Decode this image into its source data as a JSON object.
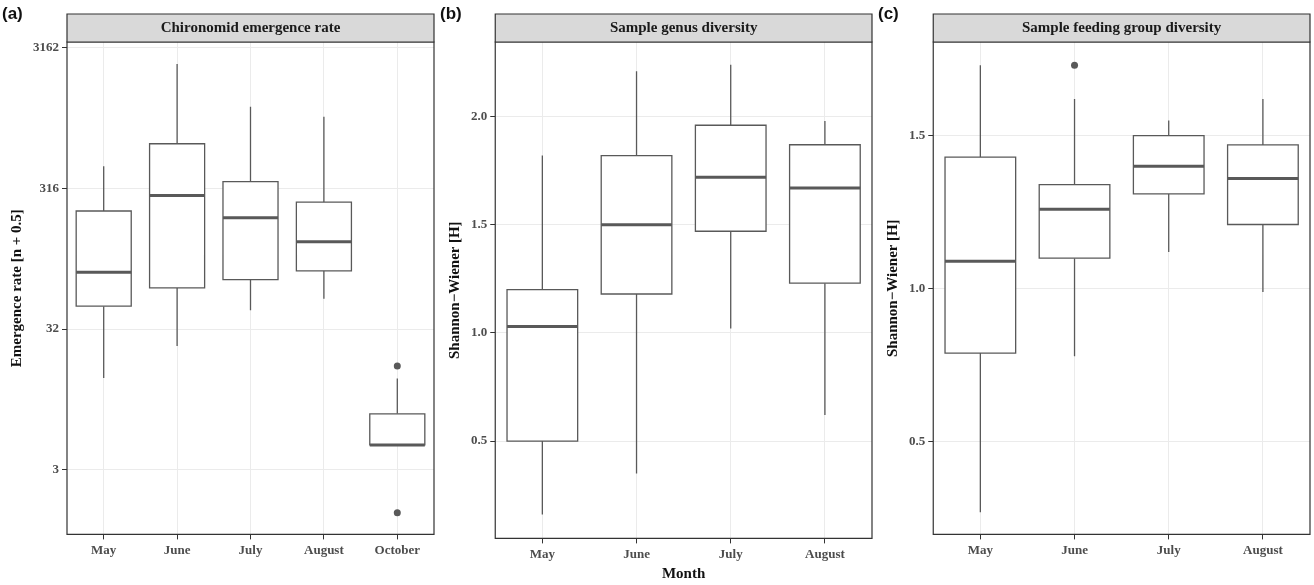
{
  "chart_data": [
    {
      "type": "box",
      "title": "Chironomid emergence rate",
      "ylabel": "Emergence rate [n + 0.5]",
      "annotations": [
        "(a)"
      ],
      "categories": [
        "May",
        "June",
        "July",
        "August",
        "October"
      ],
      "log": true,
      "grid": true,
      "ylim": [
        1.1,
        3460
      ],
      "yticks": [
        {
          "value": 3.1623,
          "label": "3"
        },
        {
          "value": 31.623,
          "label": "32"
        },
        {
          "value": 316.23,
          "label": "316"
        },
        {
          "value": 3162.3,
          "label": "3162"
        }
      ],
      "boxes": [
        {
          "low": 14.2,
          "q1": 46,
          "median": 80,
          "q3": 218,
          "high": 454
        },
        {
          "low": 24,
          "q1": 62,
          "median": 281,
          "q3": 655,
          "high": 2415
        },
        {
          "low": 43,
          "q1": 71,
          "median": 195,
          "q3": 353,
          "high": 1200
        },
        {
          "low": 52,
          "q1": 82,
          "median": 132,
          "q3": 252,
          "high": 1020
        },
        {
          "low": 4.75,
          "q1": 4.75,
          "median": 4.75,
          "q3": 7.9,
          "high": 14.1,
          "outliers": [
            17.3,
            1.57
          ]
        }
      ]
    },
    {
      "type": "box",
      "title": "Sample genus diversity",
      "xlabel": "Month",
      "ylabel": "Shannon−Wiener [H]",
      "annotations": [
        "(b)"
      ],
      "categories": [
        "May",
        "June",
        "July",
        "August"
      ],
      "grid": true,
      "ylim": [
        0.05,
        2.345
      ],
      "yticks": [
        {
          "value": 0.5,
          "label": "0.5"
        },
        {
          "value": 1,
          "label": "1.0"
        },
        {
          "value": 1.5,
          "label": "1.5"
        },
        {
          "value": 2,
          "label": "2.0"
        }
      ],
      "boxes": [
        {
          "low": 0.16,
          "q1": 0.5,
          "median": 1.03,
          "q3": 1.2,
          "high": 1.82
        },
        {
          "low": 0.35,
          "q1": 1.18,
          "median": 1.5,
          "q3": 1.82,
          "high": 2.21
        },
        {
          "low": 1.02,
          "q1": 1.47,
          "median": 1.72,
          "q3": 1.96,
          "high": 2.24
        },
        {
          "low": 0.62,
          "q1": 1.23,
          "median": 1.67,
          "q3": 1.87,
          "high": 1.98
        }
      ]
    },
    {
      "type": "box",
      "title": "Sample feeding group diversity",
      "ylabel": "Shannon−Wiener [H]",
      "annotations": [
        "(c)"
      ],
      "categories": [
        "May",
        "June",
        "July",
        "August"
      ],
      "grid": true,
      "ylim": [
        0.198,
        1.806
      ],
      "yticks": [
        0.5,
        {
          "value": 1,
          "label": "1.0"
        },
        1.5
      ],
      "boxes": [
        {
          "low": 0.27,
          "q1": 0.79,
          "median": 1.09,
          "q3": 1.43,
          "high": 1.73
        },
        {
          "low": 0.78,
          "q1": 1.1,
          "median": 1.26,
          "q3": 1.34,
          "high": 1.62,
          "outliers": [
            1.73
          ]
        },
        {
          "low": 1.12,
          "q1": 1.31,
          "median": 1.4,
          "q3": 1.5,
          "high": 1.55
        },
        {
          "low": 0.99,
          "q1": 1.21,
          "median": 1.36,
          "q3": 1.47,
          "high": 1.62
        }
      ]
    }
  ]
}
